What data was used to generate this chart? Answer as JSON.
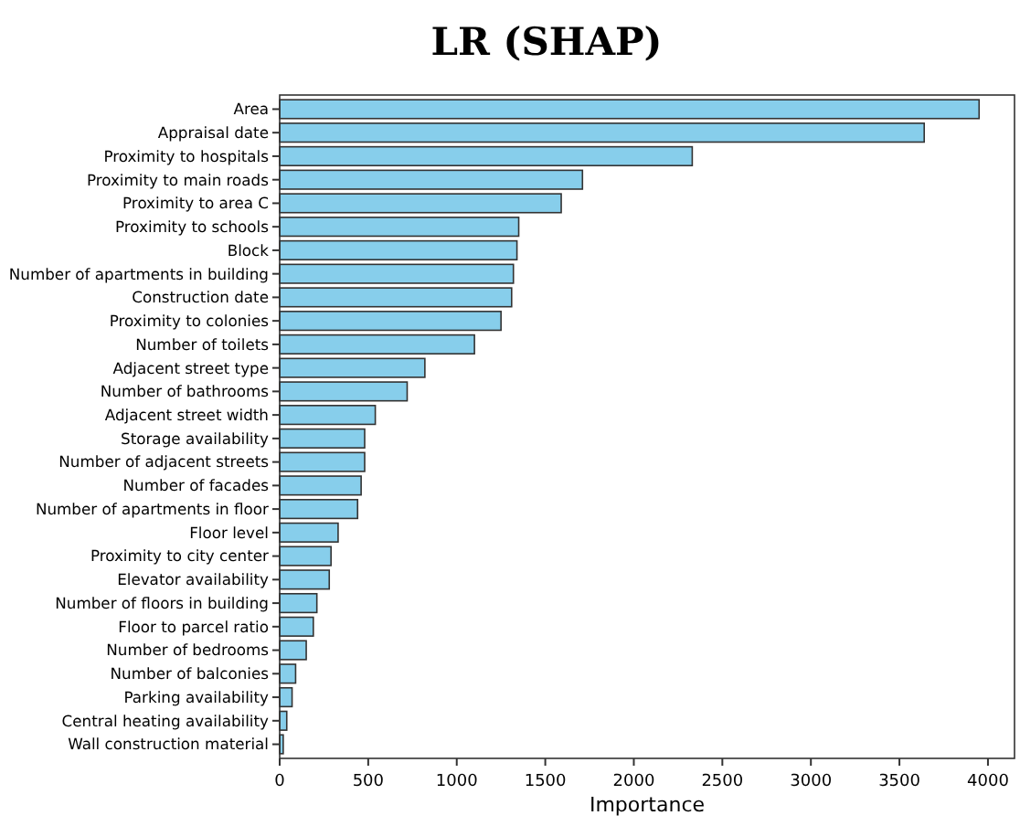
{
  "chart_data": {
    "type": "bar",
    "orientation": "horizontal",
    "title": "LR (SHAP)",
    "xlabel": "Importance",
    "categories": [
      "Area",
      "Appraisal date",
      "Proximity to hospitals",
      "Proximity to main roads",
      "Proximity to area C",
      "Proximity to schools",
      "Block",
      "Number of apartments in building",
      "Construction date",
      "Proximity to colonies",
      "Number of toilets",
      "Adjacent street type",
      "Number of bathrooms",
      "Adjacent street width",
      "Storage availability",
      "Number of adjacent streets",
      "Number of facades",
      "Number of apartments in floor",
      "Floor level",
      "Proximity to city center",
      "Elevator availability",
      "Number of floors in building",
      "Floor to parcel ratio",
      "Number of bedrooms",
      "Number of balconies",
      "Parking availability",
      "Central heating availability",
      "Wall construction material"
    ],
    "values": [
      3950,
      3640,
      2330,
      1710,
      1590,
      1350,
      1340,
      1320,
      1310,
      1250,
      1100,
      820,
      720,
      540,
      480,
      480,
      460,
      440,
      330,
      290,
      280,
      210,
      190,
      150,
      90,
      70,
      40,
      20
    ],
    "color": "#87ceeb",
    "xlim": [
      0,
      4150
    ],
    "xticks": [
      0,
      500,
      1000,
      1500,
      2000,
      2500,
      3000,
      3500,
      4000
    ],
    "grid": false
  }
}
